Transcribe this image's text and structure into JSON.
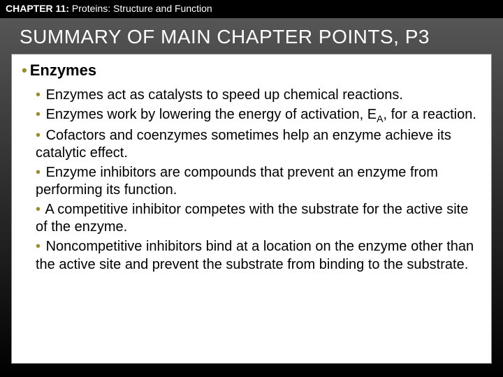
{
  "colors": {
    "bullet": "#9d8b2e",
    "header_text": "#ffffff",
    "body_text": "#000000",
    "box_bg": "#ffffff",
    "page_top": "#5a5a5a",
    "page_bottom": "#000000"
  },
  "typography": {
    "chapter_fontsize": 14,
    "heading_fontsize": 28,
    "topic_fontsize": 22,
    "point_fontsize": 20,
    "font_family": "Arial"
  },
  "chapter": {
    "label": "CHAPTER 11:",
    "subtitle": " Proteins: Structure and Function"
  },
  "heading": "SUMMARY OF MAIN CHAPTER POINTS, P3",
  "topic": "Enzymes",
  "points": [
    "Enzymes act as catalysts to speed up chemical reactions.",
    "Enzymes work by lowering the energy of activation, E_A, for a reaction.",
    "Cofactors and coenzymes sometimes help an enzyme achieve its catalytic effect.",
    "Enzyme inhibitors are compounds that prevent an enzyme from performing its function.",
    "A competitive inhibitor competes with the substrate for the active site of the enzyme.",
    "Noncompetitive inhibitors bind at a location on the enzyme other than the active site and prevent the substrate from binding to the substrate."
  ]
}
